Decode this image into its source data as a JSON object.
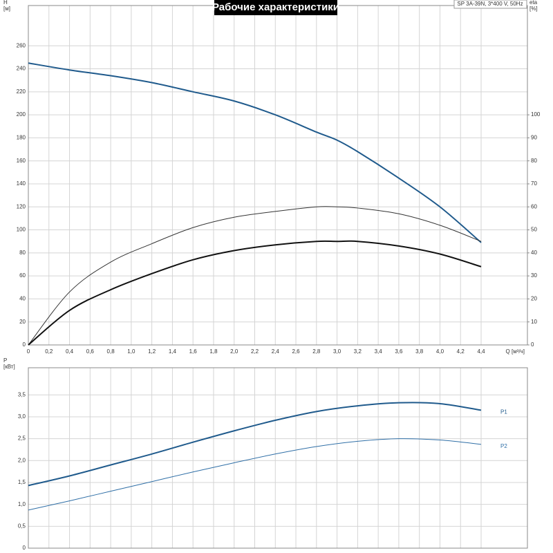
{
  "chart_data": [
    {
      "type": "line",
      "title": "Рабочие характеристики",
      "annotation": "SP 3A-39N, 3*400 V, 50Hz",
      "ylabel": [
        "H",
        "[м]"
      ],
      "y2label": [
        "eta",
        "[%]"
      ],
      "xlabel": "Q [м³/ч]",
      "x": [
        0,
        0.4,
        0.8,
        1.2,
        1.6,
        2.0,
        2.4,
        2.8,
        3.0,
        3.2,
        3.6,
        4.0,
        4.4
      ],
      "xlim": [
        0,
        4.85
      ],
      "xticks": [
        0,
        {
          "value": 0.2,
          "label": "0,2"
        },
        {
          "value": 0.4,
          "label": "0,4"
        },
        {
          "value": 0.6,
          "label": "0,6"
        },
        {
          "value": 0.8,
          "label": "0,8"
        },
        {
          "value": 1,
          "label": "1,0"
        },
        {
          "value": 1.2,
          "label": "1,2"
        },
        {
          "value": 1.4,
          "label": "1,4"
        },
        {
          "value": 1.6,
          "label": "1,6"
        },
        {
          "value": 1.8,
          "label": "1,8"
        },
        {
          "value": 2,
          "label": "2,0"
        },
        {
          "value": 2.2,
          "label": "2,2"
        },
        {
          "value": 2.4,
          "label": "2,4"
        },
        {
          "value": 2.6,
          "label": "2,6"
        },
        {
          "value": 2.8,
          "label": "2,8"
        },
        {
          "value": 3,
          "label": "3,0"
        },
        {
          "value": 3.2,
          "label": "3,2"
        },
        {
          "value": 3.4,
          "label": "3,4"
        },
        {
          "value": 3.6,
          "label": "3,6"
        },
        {
          "value": 3.8,
          "label": "3,8"
        },
        {
          "value": 4,
          "label": "4,0"
        },
        {
          "value": 4.2,
          "label": "4,2"
        },
        {
          "value": 4.4,
          "label": "4,4"
        }
      ],
      "ylim": [
        0,
        295
      ],
      "yticks": [
        0,
        20,
        40,
        60,
        80,
        100,
        120,
        140,
        160,
        180,
        200,
        220,
        240,
        260
      ],
      "y2lim": [
        0,
        147.5
      ],
      "y2ticks": [
        0,
        10,
        20,
        30,
        40,
        50,
        60,
        70,
        80,
        90,
        100
      ],
      "grid": true,
      "series": [
        {
          "color": "#1f5a8c",
          "width": 2,
          "values": [
            245,
            239,
            234,
            228,
            220,
            212,
            200,
            185,
            178,
            168,
            145,
            120,
            89
          ]
        },
        {
          "color": "#333333",
          "width": 1,
          "axis": "y2",
          "values": [
            0,
            23,
            36,
            44,
            51,
            55.5,
            58,
            60,
            60,
            59.5,
            57,
            52,
            45
          ]
        },
        {
          "color": "#111111",
          "width": 2,
          "axis": "y2",
          "values": [
            0,
            15,
            24,
            31,
            37,
            41,
            43.5,
            45,
            45,
            45,
            43,
            39.5,
            34
          ]
        }
      ]
    },
    {
      "type": "line",
      "ylabel": [
        "P",
        "[кВт]"
      ],
      "x": [
        0,
        0.4,
        0.8,
        1.2,
        1.6,
        2.0,
        2.4,
        2.8,
        3.2,
        3.6,
        4.0,
        4.4
      ],
      "xlim": [
        0,
        4.85
      ],
      "ylim": [
        0,
        4.12
      ],
      "yticks": [
        0,
        {
          "value": 0.5,
          "label": "0,5"
        },
        {
          "value": 1,
          "label": "1,0"
        },
        {
          "value": 1.5,
          "label": "1,5"
        },
        {
          "value": 2,
          "label": "2,0"
        },
        {
          "value": 2.5,
          "label": "2,5"
        },
        {
          "value": 3,
          "label": "3,0"
        },
        {
          "value": 3.5,
          "label": "3,5"
        }
      ],
      "grid": true,
      "series": [
        {
          "name": "P1",
          "color": "#1f5a8c",
          "width": 2,
          "values": [
            1.43,
            1.65,
            1.9,
            2.15,
            2.42,
            2.68,
            2.92,
            3.12,
            3.25,
            3.32,
            3.3,
            3.15
          ]
        },
        {
          "name": "P2",
          "color": "#2e6ea6",
          "width": 1,
          "values": [
            0.87,
            1.08,
            1.3,
            1.52,
            1.74,
            1.95,
            2.15,
            2.32,
            2.44,
            2.5,
            2.47,
            2.37
          ]
        }
      ]
    }
  ]
}
